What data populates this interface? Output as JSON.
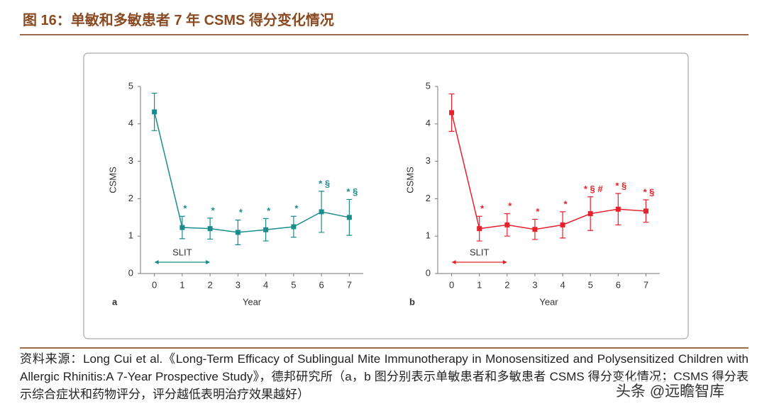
{
  "header": {
    "title": "图 16：单敏和多敏患者 7 年 CSMS 得分变化情况"
  },
  "chart_data": [
    {
      "type": "line",
      "panel_label": "a",
      "x_label": "Year",
      "y_label": "CSMS",
      "color": "#1b8c8c",
      "x": [
        0,
        1,
        2,
        3,
        4,
        5,
        6,
        7
      ],
      "values": [
        4.32,
        1.23,
        1.2,
        1.1,
        1.17,
        1.25,
        1.65,
        1.5
      ],
      "errors": [
        0.5,
        0.3,
        0.28,
        0.33,
        0.3,
        0.28,
        0.55,
        0.48
      ],
      "annotations": [
        null,
        "*",
        "*",
        "*",
        "*",
        "*",
        "* §",
        "* §"
      ],
      "span_label": "SLIT",
      "span_x": [
        0,
        2
      ],
      "xlim": [
        -0.5,
        7.5
      ],
      "xticks": [
        0,
        1,
        2,
        3,
        4,
        5,
        6,
        7
      ],
      "ylim": [
        0,
        5
      ],
      "yticks": [
        0,
        1,
        2,
        3,
        4,
        5
      ]
    },
    {
      "type": "line",
      "panel_label": "b",
      "x_label": "Year",
      "y_label": "CSMS",
      "color": "#e8212a",
      "x": [
        0,
        1,
        2,
        3,
        4,
        5,
        6,
        7
      ],
      "values": [
        4.3,
        1.2,
        1.3,
        1.18,
        1.3,
        1.6,
        1.72,
        1.67
      ],
      "errors": [
        0.5,
        0.33,
        0.3,
        0.27,
        0.35,
        0.45,
        0.42,
        0.3
      ],
      "annotations": [
        null,
        "*",
        "*",
        "*",
        "*",
        "* § #",
        "* §",
        "* §"
      ],
      "span_label": "SLIT",
      "span_x": [
        0,
        2
      ],
      "xlim": [
        -0.5,
        7.5
      ],
      "xticks": [
        0,
        1,
        2,
        3,
        4,
        5,
        6,
        7
      ],
      "ylim": [
        0,
        5
      ],
      "yticks": [
        0,
        1,
        2,
        3,
        4,
        5
      ]
    }
  ],
  "source": {
    "text": "资料来源：Long Cui et al.《Long-Term Efficacy of Sublingual Mite Immunotherapy in Monosensitized and Polysensitized Children with Allergic Rhinitis:A 7-Year Prospective Study》，德邦研究所（a，b 图分别表示单敏患者和多敏患者 CSMS 得分变化情况；CSMS 得分表示综合症状和药物评分，评分越低表明治疗效果越好）"
  },
  "watermark": "头条 @远瞻智库"
}
